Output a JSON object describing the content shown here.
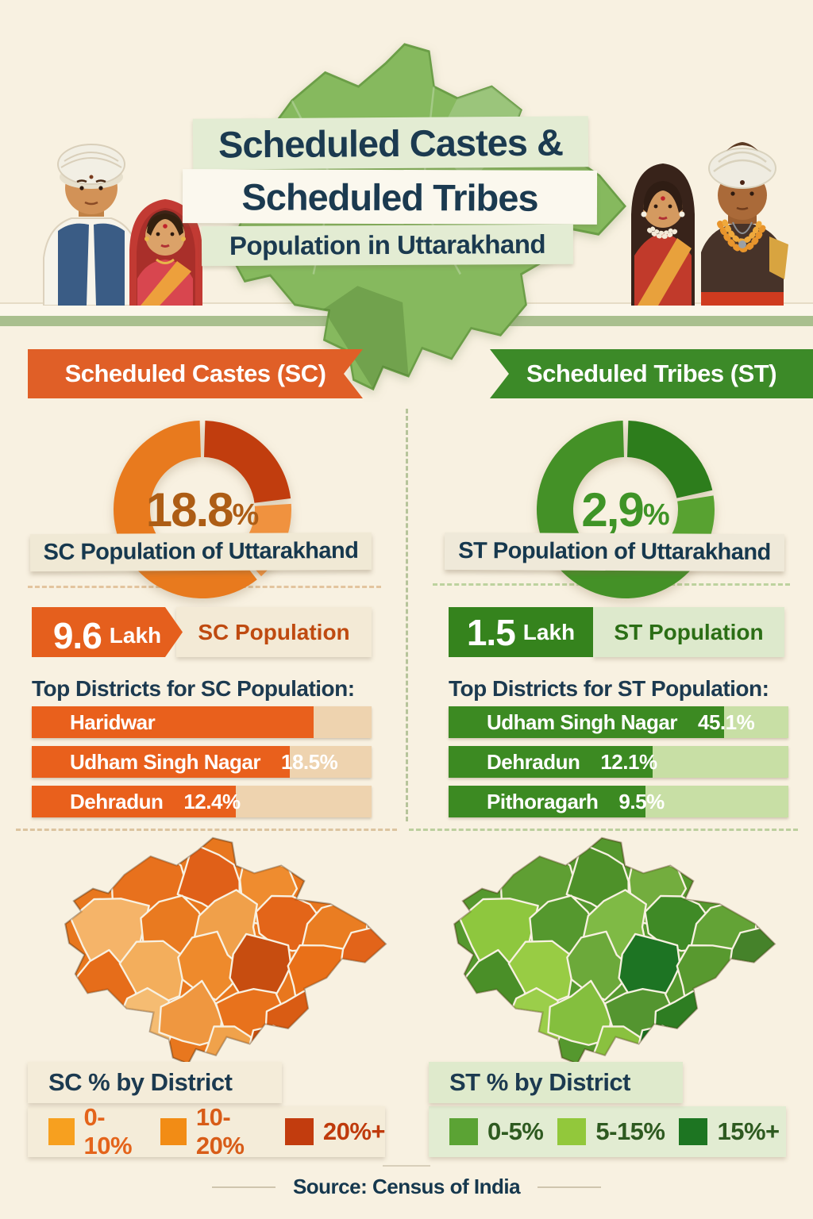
{
  "header": {
    "title_line1": "Scheduled Castes &",
    "title_line2": "Scheduled Tribes",
    "title_line3": "Population in Uttarakhand"
  },
  "source": "Source: Census of India",
  "sc": {
    "ribbon": "Scheduled Castes (SC)",
    "donut_value": "18.8",
    "donut_pct_sign": "%",
    "donut_label": "SC Population of Uttarakhand",
    "stat_value": "9.6",
    "stat_unit": "Lakh",
    "stat_label": "SC Population",
    "districts_heading": "Top Districts for SC Population:",
    "bars": [
      {
        "name": "Haridwar",
        "pct": "",
        "fill": 83
      },
      {
        "name": "Udham Singh Nagar",
        "pct": "18.5%",
        "fill": 76
      },
      {
        "name": "Dehradun",
        "pct": "12.4%",
        "fill": 60
      }
    ],
    "legend_title": "SC % by District",
    "legend": [
      {
        "label": "0-10%",
        "color": "#f7a01f"
      },
      {
        "label": "10-20%",
        "color": "#f28c15"
      },
      {
        "label": "20%+",
        "color": "#c23c0e"
      }
    ],
    "map_colors": [
      "#e8711d",
      "#e06018",
      "#ef8c2f",
      "#f5b469",
      "#e97a20",
      "#f0a04a",
      "#e36519",
      "#ea7d22",
      "#e66d1a",
      "#f3ae5c",
      "#ee8a2c",
      "#c74d10",
      "#e97018",
      "#e2641a",
      "#f5bc72",
      "#ef9740",
      "#e8721c",
      "#d95c14",
      "#f0a24b",
      "#c7500f"
    ],
    "donut_segments": [
      {
        "color": "#c13d0e",
        "fraction": 0.235
      },
      {
        "color": "#f0923f",
        "fraction": 0.155
      },
      {
        "color": "#e87a1e",
        "fraction": 0.61
      }
    ]
  },
  "st": {
    "ribbon": "Scheduled Tribes (ST)",
    "donut_value": "2,9",
    "donut_pct_sign": "%",
    "donut_label": "ST Population of Uttarakhand",
    "stat_value": "1.5",
    "stat_unit": "Lakh",
    "stat_label": "ST Population",
    "districts_heading": "Top Districts for ST Population:",
    "bars": [
      {
        "name": "Udham Singh Nagar",
        "pct": "45.1%",
        "fill": 81
      },
      {
        "name": "Dehradun",
        "pct": "12.1%",
        "fill": 60
      },
      {
        "name": "Pithoragarh",
        "pct": "9.5%",
        "fill": 58
      }
    ],
    "legend_title": "ST % by District",
    "legend": [
      {
        "label": "0-5%",
        "color": "#5ba334"
      },
      {
        "label": "5-15%",
        "color": "#92c83b"
      },
      {
        "label": "15%+",
        "color": "#1d7522"
      }
    ],
    "map_colors": [
      "#5f9f33",
      "#4e9129",
      "#73ad3e",
      "#8ec73e",
      "#55982e",
      "#7fba45",
      "#3f8a26",
      "#63a336",
      "#4a8f28",
      "#98cc44",
      "#6ca93a",
      "#1d7423",
      "#58992f",
      "#45822a",
      "#9bce4a",
      "#84bf3e",
      "#549530",
      "#2e7d22",
      "#8ac13f",
      "#176e1f"
    ]
  },
  "chart_data": [
    {
      "type": "pie",
      "subtype": "donut",
      "title": "SC Population of Uttarakhand",
      "center_label": "18.8%",
      "value_pct": 18.8,
      "segments_fraction": [
        0.235,
        0.155,
        0.61
      ],
      "segment_colors": [
        "#c13d0e",
        "#f0923f",
        "#e87a1e"
      ]
    },
    {
      "type": "pie",
      "subtype": "donut",
      "title": "ST Population of Uttarakhand",
      "center_label": "2,9%",
      "value_pct": 2.9,
      "segments_fraction": [
        0.22,
        0.13,
        0.65
      ],
      "segment_colors": [
        "#2d7d1c",
        "#58a231",
        "#449127"
      ]
    },
    {
      "type": "bar",
      "title": "Top Districts for SC Population",
      "categories": [
        "Haridwar",
        "Udham Singh Nagar",
        "Dehradun"
      ],
      "values": [
        null,
        18.5,
        12.4
      ],
      "unit": "%",
      "note": "Haridwar bar shown without percentage label"
    },
    {
      "type": "bar",
      "title": "Top Districts for ST Population",
      "categories": [
        "Udham Singh Nagar",
        "Dehradun",
        "Pithoragarh"
      ],
      "values": [
        45.1,
        12.1,
        9.5
      ],
      "unit": "%"
    },
    {
      "type": "heatmap",
      "title": "SC % by District",
      "bins": [
        "0-10%",
        "10-20%",
        "20%+"
      ],
      "bin_colors": [
        "#f7a01f",
        "#f28c15",
        "#c23c0e"
      ]
    },
    {
      "type": "heatmap",
      "title": "ST % by District",
      "bins": [
        "0-5%",
        "5-15%",
        "15%+"
      ],
      "bin_colors": [
        "#5ba334",
        "#92c83b",
        "#1d7522"
      ]
    }
  ]
}
